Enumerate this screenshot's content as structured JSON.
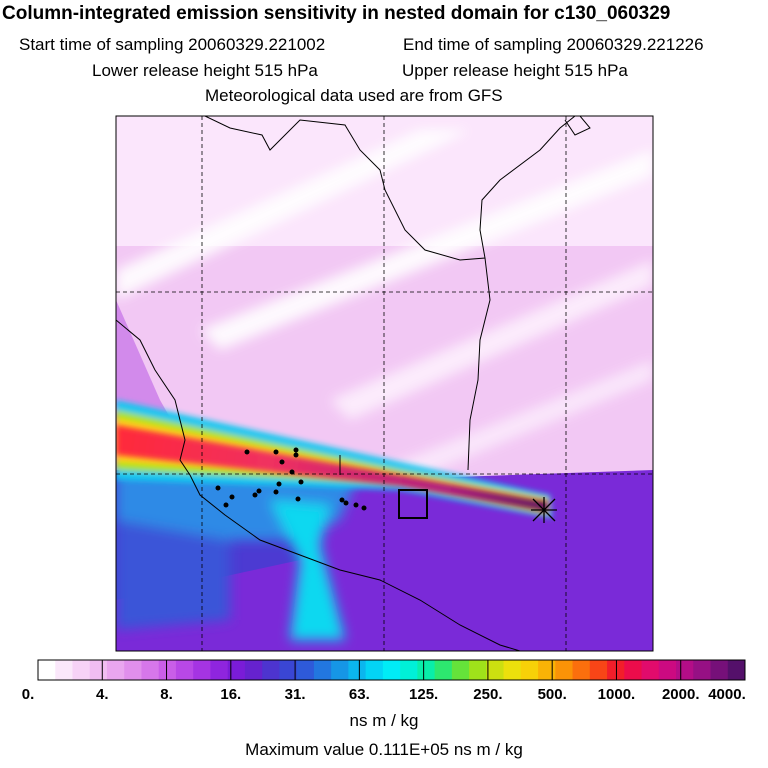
{
  "header": {
    "title": "Column-integrated emission sensitivity in nested domain for c130_060329",
    "start_label": "Start time of sampling 20060329.221002",
    "end_label": "End time of sampling 20060329.221226",
    "lower_label": "Lower release height  515 hPa",
    "upper_label": "Upper release height  515 hPa",
    "met_label": "Meteorological data used are from GFS"
  },
  "colorbar": {
    "tick_labels": [
      "0.",
      "4.",
      "8.",
      "16.",
      "31.",
      "63.",
      "125.",
      "250.",
      "500.",
      "1000.",
      "2000.",
      "4000."
    ],
    "colors": [
      "#ffffff",
      "#fbe8fb",
      "#f7d2f7",
      "#f1bdf2",
      "#eaa6ef",
      "#e18fec",
      "#d677ea",
      "#c95ee8",
      "#b848e6",
      "#a534e3",
      "#8f25de",
      "#7a1cd7",
      "#6622ce",
      "#4d34cf",
      "#3a46d4",
      "#2e5ad9",
      "#2277df",
      "#1696e6",
      "#0bb6ee",
      "#03d4f5",
      "#00ecf6",
      "#00f0d8",
      "#09eeaa",
      "#2de86f",
      "#65e33a",
      "#9fe21a",
      "#ccdf10",
      "#ece00c",
      "#f7d108",
      "#fab306",
      "#fb9307",
      "#fb6f0d",
      "#f84517",
      "#f21e2a",
      "#ec0c4b",
      "#e10b6c",
      "#cc0a81",
      "#b30d87",
      "#961084",
      "#761079",
      "#54106a"
    ],
    "unit": "ns m / kg"
  },
  "footer": {
    "max_label": "Maximum value  0.111E+05 ns m / kg"
  },
  "map": {
    "receptor_marker": "receptor-x-icon",
    "box_marker": "release-box"
  }
}
